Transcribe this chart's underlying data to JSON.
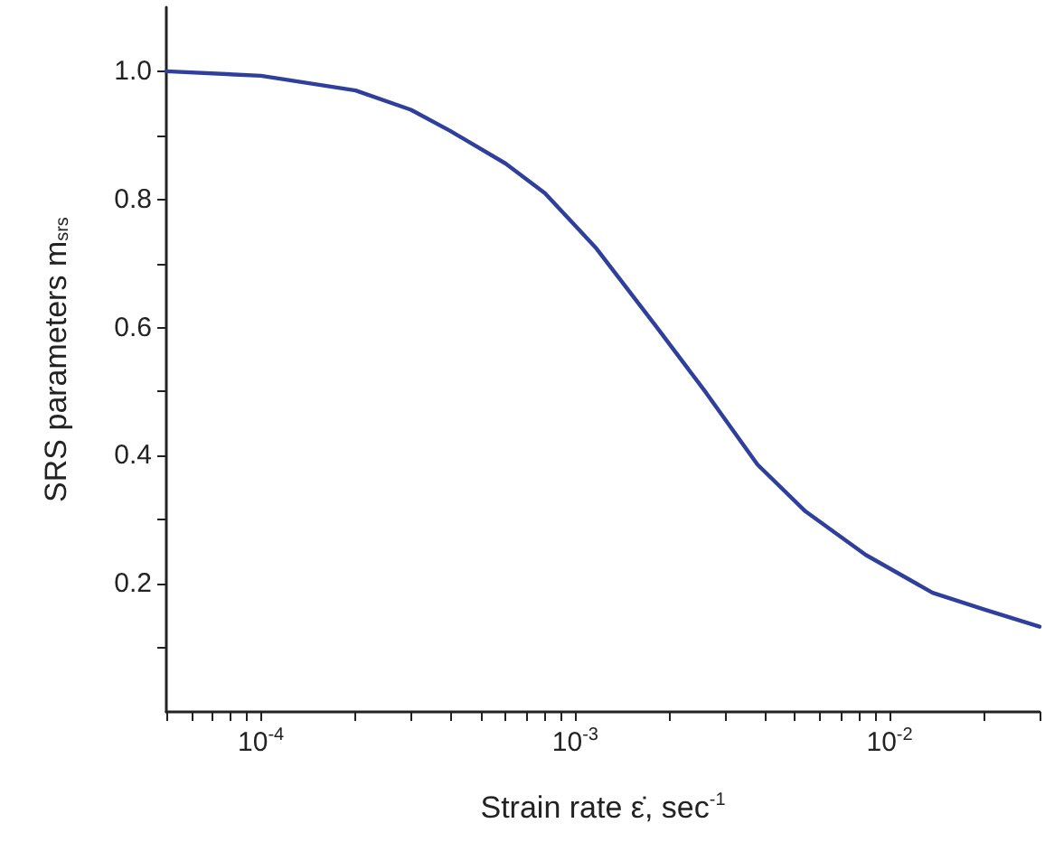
{
  "chart_data": {
    "type": "line",
    "xlabel": "Strain rate ε̇, sec$^{-1}$",
    "ylabel": "SRS parameters m$_{srs}$",
    "log": "x",
    "xlim": [
      5e-05,
      0.03
    ],
    "ylim": [
      0,
      1.1
    ],
    "xticks": [
      {
        "value": 5e-05,
        "label": null
      },
      {
        "value": 6e-05,
        "label": null
      },
      {
        "value": 7e-05,
        "label": null
      },
      {
        "value": 8e-05,
        "label": null
      },
      {
        "value": 9e-05,
        "label": null
      },
      {
        "value": 0.0001,
        "label": "10$^{-4}$"
      },
      {
        "value": 0.0002,
        "label": null
      },
      {
        "value": 0.0003,
        "label": null
      },
      {
        "value": 0.0004,
        "label": null
      },
      {
        "value": 0.0005,
        "label": null
      },
      {
        "value": 0.0006,
        "label": null
      },
      {
        "value": 0.0007,
        "label": null
      },
      {
        "value": 0.0008,
        "label": null
      },
      {
        "value": 0.0009,
        "label": null
      },
      {
        "value": 0.001,
        "label": "10$^{-3}$"
      },
      {
        "value": 0.002,
        "label": null
      },
      {
        "value": 0.003,
        "label": null
      },
      {
        "value": 0.004,
        "label": null
      },
      {
        "value": 0.005,
        "label": null
      },
      {
        "value": 0.006,
        "label": null
      },
      {
        "value": 0.007,
        "label": null
      },
      {
        "value": 0.008,
        "label": null
      },
      {
        "value": 0.009,
        "label": null
      },
      {
        "value": 0.01,
        "label": "10$^{-2}$"
      },
      {
        "value": 0.02,
        "label": null
      },
      {
        "value": 0.03,
        "label": null
      }
    ],
    "yticks": [
      {
        "value": 0.1,
        "label": null
      },
      0.2,
      {
        "value": 0.3,
        "label": null
      },
      0.4,
      {
        "value": 0.5,
        "label": null
      },
      0.6,
      {
        "value": 0.7,
        "label": null
      },
      0.8,
      {
        "value": 0.9,
        "label": null
      },
      {
        "value": 1,
        "label": "1.0"
      }
    ],
    "grid": false,
    "marker": "none",
    "line_style": "solid",
    "series": [
      {
        "color": "#2e3f9e",
        "x": [
          5e-05,
          0.0001,
          0.0002,
          0.0003,
          0.0004,
          0.0006,
          0.0008,
          0.00116,
          0.0018,
          0.0026,
          0.0038,
          0.0054,
          0.0084,
          0.0137,
          0.02,
          0.03
        ],
        "values": [
          1.0,
          0.993,
          0.97,
          0.94,
          0.907,
          0.856,
          0.81,
          0.725,
          0.603,
          0.499,
          0.386,
          0.313,
          0.245,
          0.186,
          0.16,
          0.133
        ]
      }
    ]
  }
}
